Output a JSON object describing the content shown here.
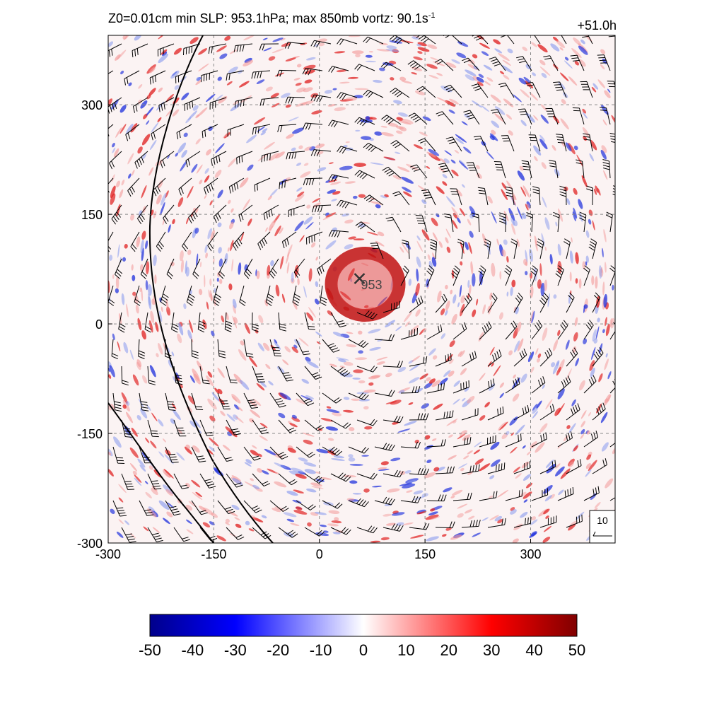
{
  "title": {
    "prefix": "Z0=0.01cm  min SLP: 953.1hPa; max 850mb vortz:  90.1s",
    "exponent": "-1"
  },
  "time_label": "+51.0h",
  "center_marker_label": "953",
  "reference_vector_label": "10",
  "colors": {
    "negative_max": "#00008b",
    "negative": "#0000ff",
    "zero": "#ffffff",
    "positive": "#ff0000",
    "positive_max": "#800000"
  },
  "chart_data": {
    "type": "heatmap",
    "xlim": [
      -300,
      420
    ],
    "ylim": [
      -300,
      395
    ],
    "x_ticks": [
      -300,
      -150,
      0,
      150,
      300
    ],
    "y_ticks": [
      -300,
      -150,
      0,
      150,
      300
    ],
    "x_tick_labels": [
      "-300",
      "-150",
      "0",
      "150",
      "300"
    ],
    "y_tick_labels": [
      "-300",
      "-150",
      "0",
      "150",
      "300"
    ],
    "grid": true,
    "storm_center": [
      57,
      62
    ],
    "colorbar": {
      "range": [
        -50,
        50
      ],
      "ticks": [
        -50,
        -40,
        -30,
        -20,
        -10,
        0,
        10,
        20,
        30,
        40,
        50
      ],
      "tick_labels": [
        "-50",
        "-40",
        "-30",
        "-20",
        "-10",
        "0",
        "10",
        "20",
        "30",
        "40",
        "50"
      ]
    }
  }
}
